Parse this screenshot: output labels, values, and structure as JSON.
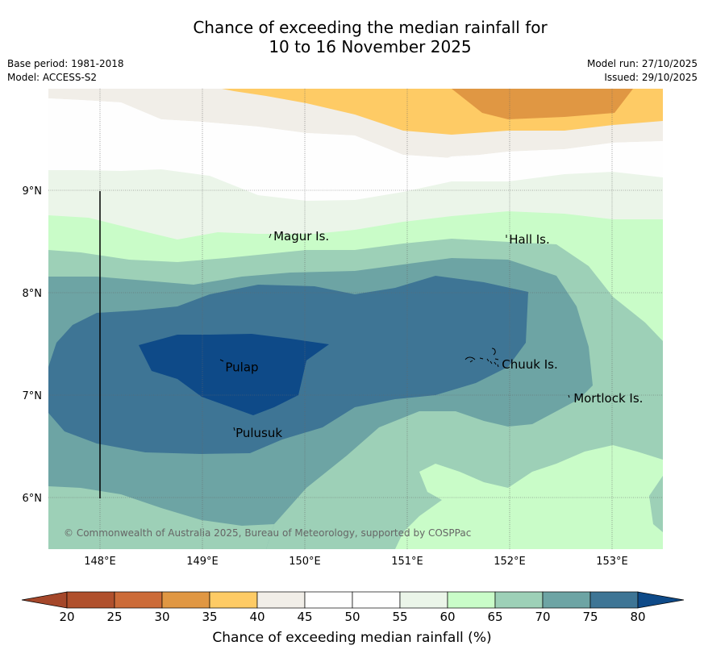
{
  "title": {
    "line1": "Chance of exceeding the median rainfall for",
    "line2": "10 to 16 November 2025"
  },
  "meta": {
    "base_period": "Base period: 1981-2018",
    "model": "Model: ACCESS-S2",
    "model_run": "Model run: 27/10/2025",
    "issued": "Issued: 29/10/2025"
  },
  "map": {
    "lon_ticks": [
      "148°E",
      "149°E",
      "150°E",
      "151°E",
      "152°E",
      "153°E"
    ],
    "lat_ticks": [
      "9°N",
      "8°N",
      "7°N",
      "6°N"
    ],
    "places": [
      {
        "name": "Magur Is.",
        "lon": 149.67,
        "lat": 8.55
      },
      {
        "name": "Hall Is.",
        "lon": 151.97,
        "lat": 8.52
      },
      {
        "name": "Pulap",
        "lon": 149.2,
        "lat": 7.27
      },
      {
        "name": "Chuuk Is.",
        "lon": 151.9,
        "lat": 7.3
      },
      {
        "name": "Mortlock Is.",
        "lon": 152.6,
        "lat": 6.97
      },
      {
        "name": "Pulusuk",
        "lon": 149.3,
        "lat": 6.63
      }
    ],
    "copyright": "© Commonwealth of Australia 2025, Bureau of Meteorology, supported by COSPPac",
    "colors": {
      "c35_40": "#fecb65",
      "c30_35": "#e09743",
      "c40_45": "#f1eee8",
      "c50_55": "#fefefe",
      "c55_60": "#ebf5e9",
      "c60_65": "#c9fcc8",
      "c65_70": "#9dd0b7",
      "c70_75": "#6da4a4",
      "c75_80": "#3e7595",
      "c80_plus": "#0e4a88"
    }
  },
  "colorbar": {
    "label": "Chance of exceeding median rainfall (%)",
    "ticks": [
      "20",
      "25",
      "30",
      "35",
      "40",
      "45",
      "50",
      "55",
      "60",
      "65",
      "70",
      "75",
      "80"
    ],
    "colors": [
      "#a5472a",
      "#b0502c",
      "#cc6b38",
      "#e09743",
      "#fecb65",
      "#f1eee8",
      "#fefefe",
      "#fefefe",
      "#ebf5e9",
      "#c9fcc8",
      "#9dd0b7",
      "#6da4a4",
      "#3e7595",
      "#0e4a88"
    ]
  }
}
